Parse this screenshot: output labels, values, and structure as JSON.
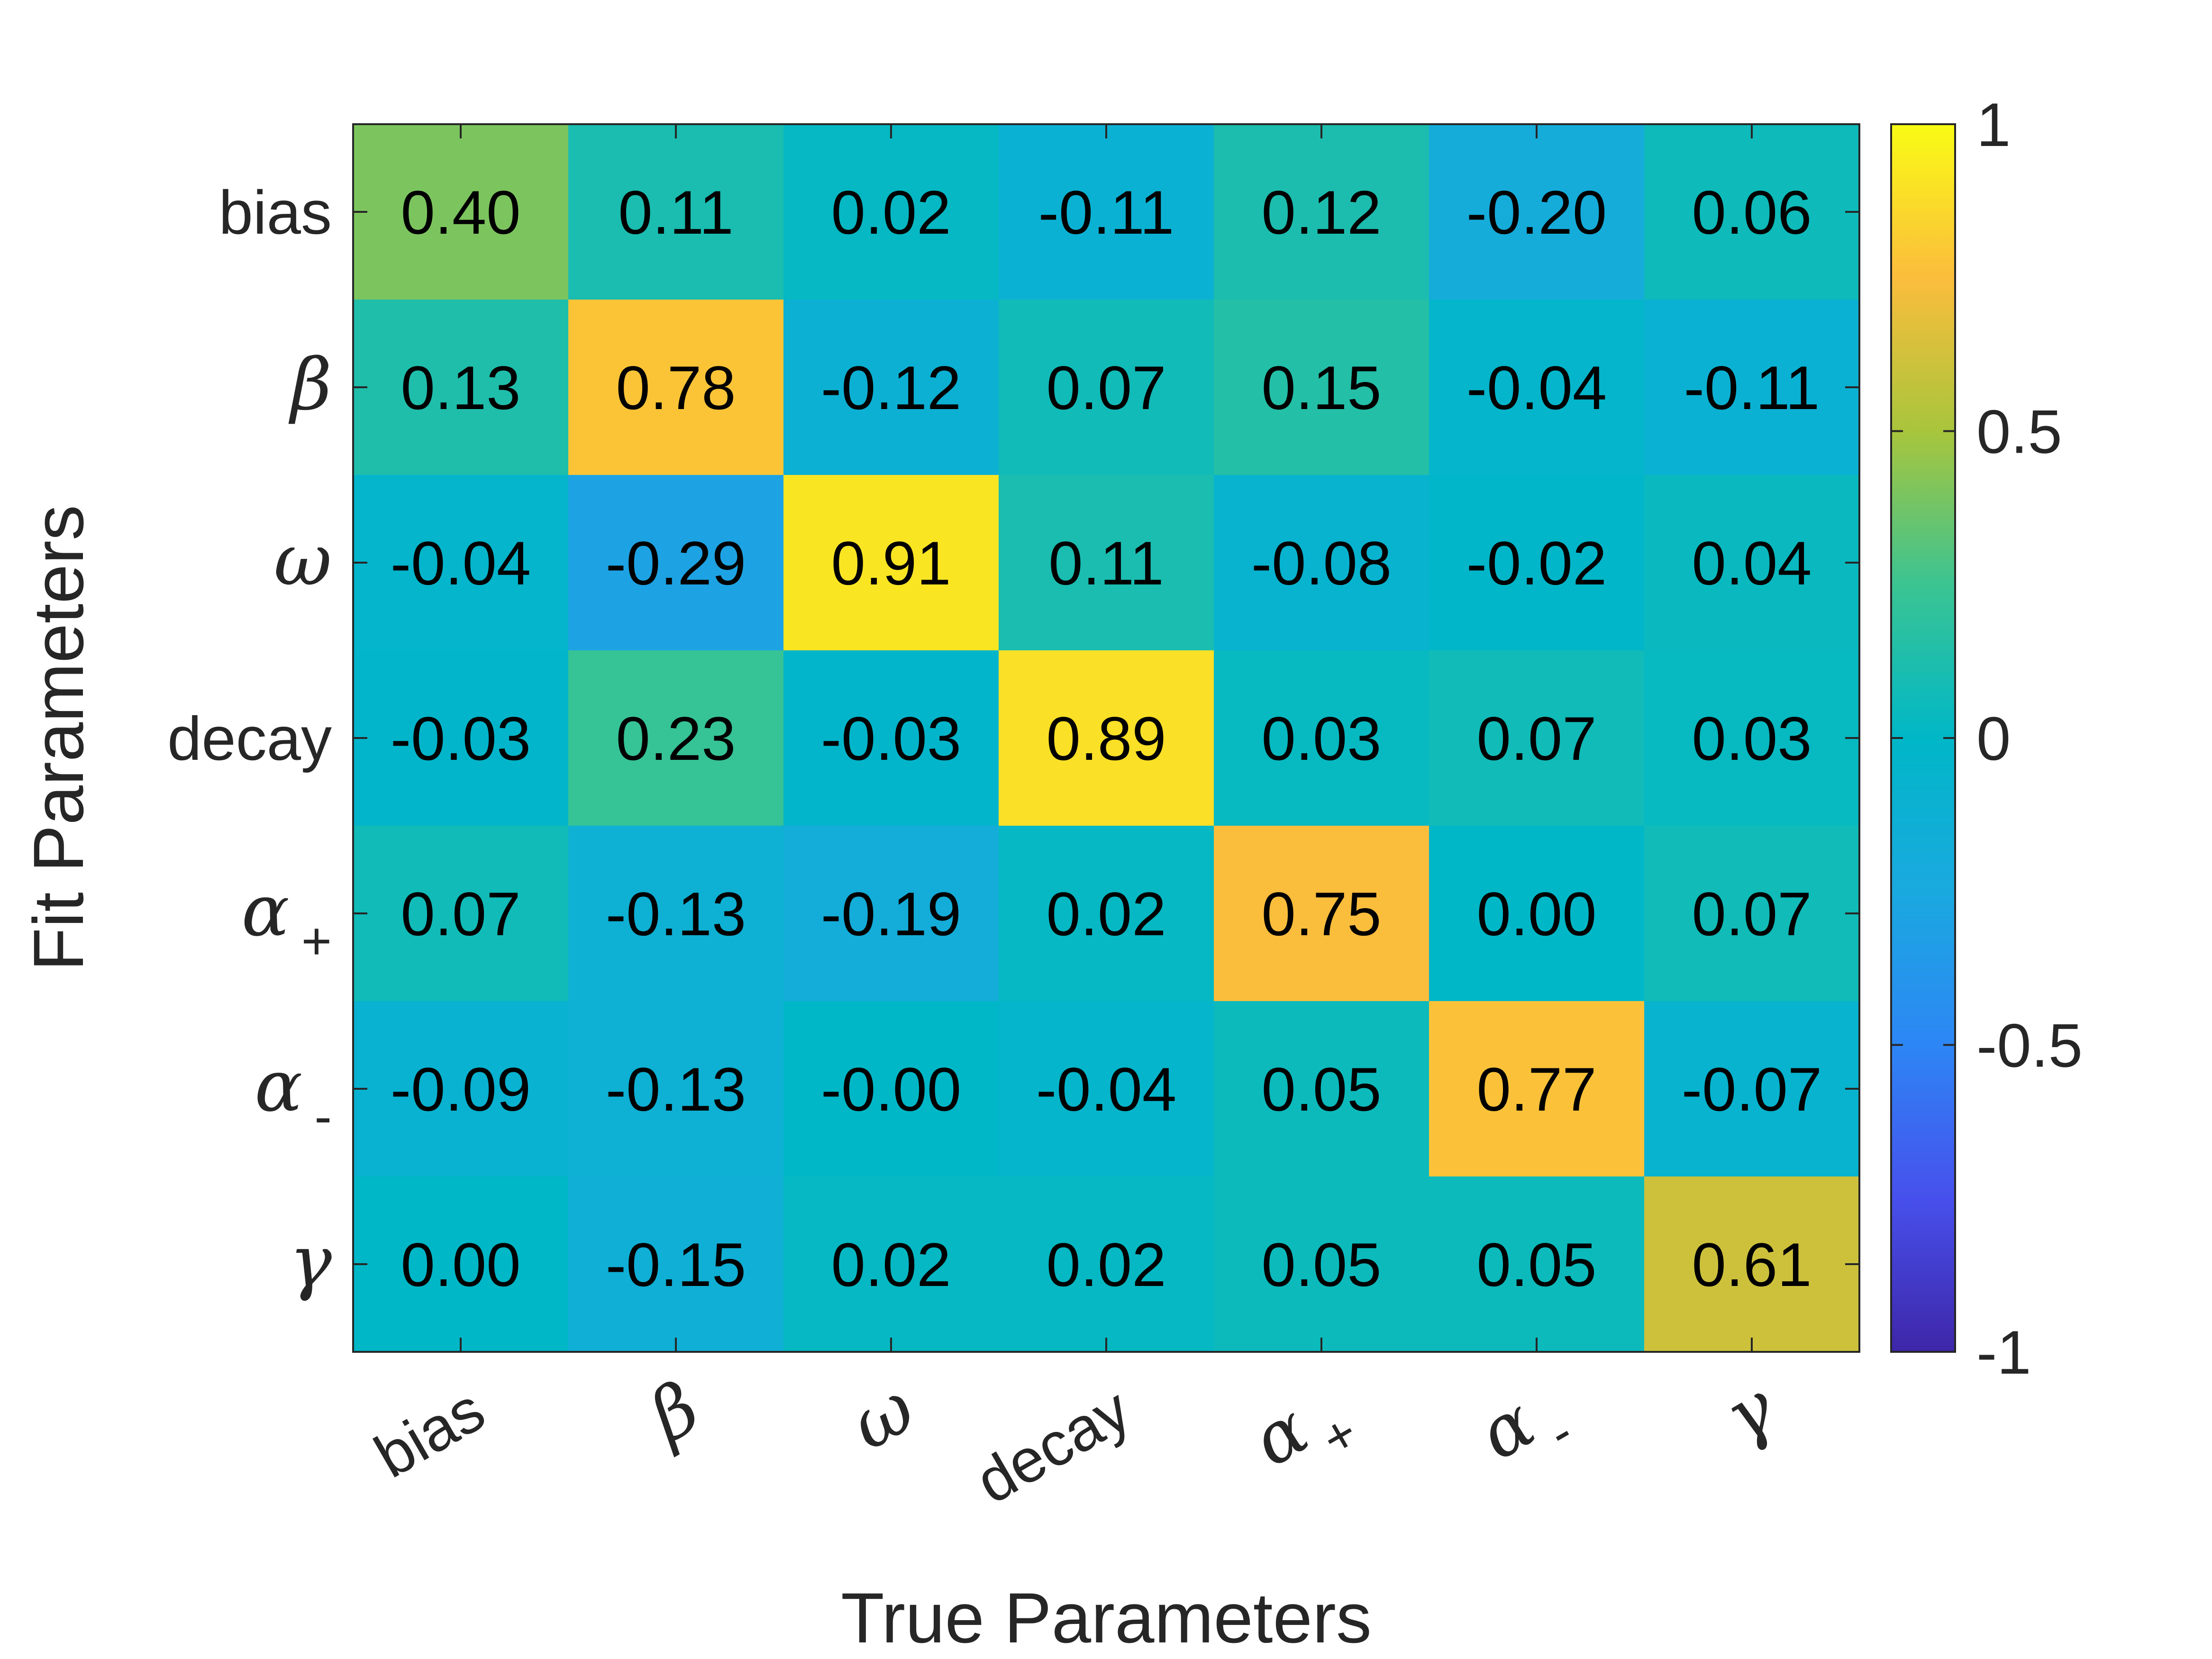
{
  "chart_data": {
    "type": "heatmap",
    "xlabel": "True Parameters",
    "ylabel": "Fit Parameters",
    "x_categories": [
      {
        "text": "bias",
        "greek": false,
        "sub": ""
      },
      {
        "text": "β",
        "greek": true,
        "sub": ""
      },
      {
        "text": "ω",
        "greek": true,
        "sub": ""
      },
      {
        "text": "decay",
        "greek": false,
        "sub": ""
      },
      {
        "text": "α",
        "greek": true,
        "sub": "+"
      },
      {
        "text": "α",
        "greek": true,
        "sub": "-"
      },
      {
        "text": "γ",
        "greek": true,
        "sub": ""
      }
    ],
    "y_categories": [
      {
        "text": "bias",
        "greek": false,
        "sub": ""
      },
      {
        "text": "β",
        "greek": true,
        "sub": ""
      },
      {
        "text": "ω",
        "greek": true,
        "sub": ""
      },
      {
        "text": "decay",
        "greek": false,
        "sub": ""
      },
      {
        "text": "α",
        "greek": true,
        "sub": "+"
      },
      {
        "text": "α",
        "greek": true,
        "sub": "-"
      },
      {
        "text": "γ",
        "greek": true,
        "sub": ""
      }
    ],
    "values": [
      [
        0.4,
        0.11,
        0.02,
        -0.11,
        0.12,
        -0.2,
        0.06
      ],
      [
        0.13,
        0.78,
        -0.12,
        0.07,
        0.15,
        -0.04,
        -0.11
      ],
      [
        -0.04,
        -0.29,
        0.91,
        0.11,
        -0.08,
        -0.02,
        0.04
      ],
      [
        -0.03,
        0.23,
        -0.03,
        0.89,
        0.03,
        0.07,
        0.03
      ],
      [
        0.07,
        -0.13,
        -0.19,
        0.02,
        0.75,
        0.0,
        0.07
      ],
      [
        -0.09,
        -0.13,
        -0.0,
        -0.04,
        0.05,
        0.77,
        -0.07
      ],
      [
        0.0,
        -0.15,
        0.02,
        0.02,
        0.05,
        0.05,
        0.61
      ]
    ],
    "cell_labels": [
      [
        "0.40",
        "0.11",
        "0.02",
        "-0.11",
        "0.12",
        "-0.20",
        "0.06"
      ],
      [
        "0.13",
        "0.78",
        "-0.12",
        "0.07",
        "0.15",
        "-0.04",
        "-0.11"
      ],
      [
        "-0.04",
        "-0.29",
        "0.91",
        "0.11",
        "-0.08",
        "-0.02",
        "0.04"
      ],
      [
        "-0.03",
        "0.23",
        "-0.03",
        "0.89",
        "0.03",
        "0.07",
        "0.03"
      ],
      [
        "0.07",
        "-0.13",
        "-0.19",
        "0.02",
        "0.75",
        "0.00",
        "0.07"
      ],
      [
        "-0.09",
        "-0.13",
        "-0.00",
        "-0.04",
        "0.05",
        "0.77",
        "-0.07"
      ],
      [
        "0.00",
        "-0.15",
        "0.02",
        "0.02",
        "0.05",
        "0.05",
        "0.61"
      ]
    ],
    "colormap": "parula",
    "clim": [
      -1,
      1
    ],
    "colorbar": {
      "ticks": [
        -1,
        -0.5,
        0,
        0.5,
        1
      ],
      "tick_labels": [
        "-1",
        "-0.5",
        "0",
        "0.5",
        "1"
      ],
      "position": "right"
    },
    "grid": false
  }
}
